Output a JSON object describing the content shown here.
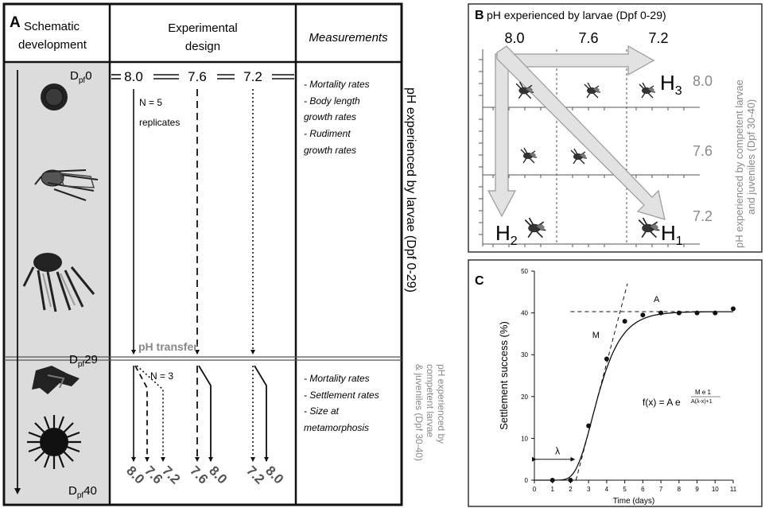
{
  "panelA": {
    "label": "A",
    "col1_title_1": "Schematic",
    "col1_title_2": "development",
    "col2_title_1": "Experimental",
    "col2_title_2": "design",
    "col3_title": "Measurements",
    "dpf0_prefix": "D",
    "dpf_sub": "pf",
    "dpf0_num": "0",
    "dpf29_num": "29",
    "dpf40_num": "40",
    "ph_values": [
      "8.0",
      "7.6",
      "7.2"
    ],
    "n5_line1": "N = 5",
    "n5_line2": "replicates",
    "n3": "N = 3",
    "transfer": "pH transfer",
    "measurements_larvae": [
      "- Mortality rates",
      "- Body length",
      "growth rates",
      "- Rudiment",
      "growth rates"
    ],
    "measurements_juveniles": [
      "- Mortality rates",
      "- Settlement rates",
      "- Size at",
      "metamorphosis"
    ],
    "bottom_labels": [
      "8.0",
      "7.6",
      "7.2",
      "7.6",
      "8.0",
      "7.2",
      "8.0"
    ],
    "vertical_larvae": "pH experienced by larvae (Dpf 0-29)",
    "vertical_juv_1": "pH experienced by",
    "vertical_juv_2": "competent larvae",
    "vertical_juv_3": "& juveniles (Dpf 30-40)"
  },
  "panelB": {
    "label": "B",
    "title": "pH experienced by larvae (Dpf 0-29)",
    "col_values": [
      "8.0",
      "7.6",
      "7.2"
    ],
    "row_values": [
      "8.0",
      "7.6",
      "7.2"
    ],
    "h1": "H",
    "h1_sub": "1",
    "h2": "H",
    "h2_sub": "2",
    "h3": "H",
    "h3_sub": "3",
    "vertical_1": "pH experienced by competent larvae",
    "vertical_2": "and juveniles (Dpf 30-40)"
  },
  "panelC": {
    "label": "C",
    "annot_A": "A",
    "annot_M": "M",
    "annot_lambda": "λ",
    "formula_main": "f(x) = A e",
    "formula_exp": "M e 1",
    "formula_den": "A(λ-x)+1",
    "chart_data": {
      "type": "scatter",
      "xlabel": "Time (days)",
      "ylabel": "Settlement success (%)",
      "xlim": [
        0,
        11
      ],
      "ylim": [
        0,
        50
      ],
      "xticks": [
        "0",
        "1",
        "2",
        "3",
        "4",
        "5",
        "6",
        "7",
        "8",
        "9",
        "10",
        "11"
      ],
      "yticks": [
        "0",
        "10",
        "20",
        "30",
        "40",
        "50"
      ],
      "x": [
        1,
        2,
        3,
        4,
        5,
        6,
        7,
        8,
        9,
        10,
        11
      ],
      "y": [
        0,
        0,
        13,
        29,
        38,
        39.5,
        40,
        40,
        40,
        40,
        41
      ],
      "asymptote_A": 40.3,
      "max_rate_M": 16.5,
      "lag_lambda": 2.3,
      "grid": false
    }
  }
}
